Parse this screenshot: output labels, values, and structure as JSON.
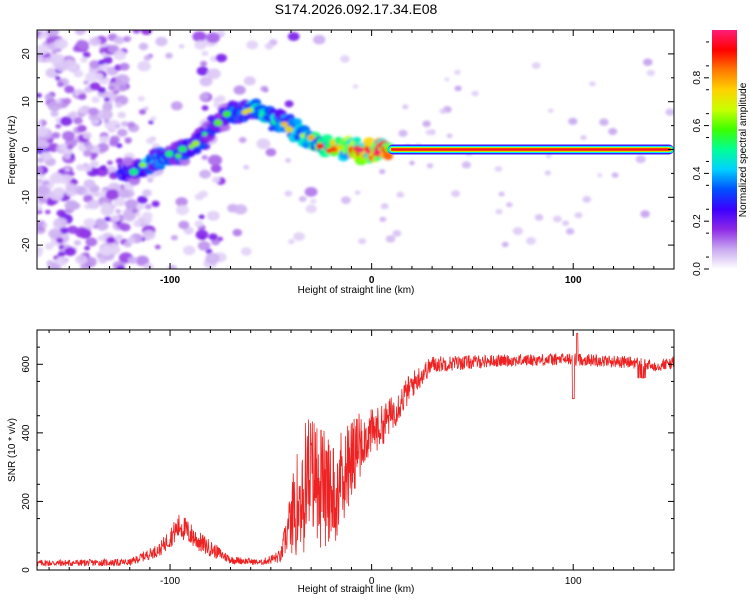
{
  "chart_data": [
    {
      "type": "heatmap",
      "title": "S174.2026.092.17.34.E08",
      "xlabel": "Height of straight line (km)",
      "ylabel": "Frequency (Hz)",
      "xlim": [
        -166,
        150
      ],
      "ylim": [
        -25,
        25
      ],
      "xticks": [
        -100,
        0,
        100
      ],
      "xtick_labels": [
        "-100",
        "0",
        "100"
      ],
      "yticks": [
        -20,
        -10,
        0,
        10,
        20
      ],
      "ytick_labels": [
        "-20",
        "-10",
        "0",
        "10",
        "20"
      ],
      "colorbar": {
        "label": "Normalized spectral amplitude",
        "range": [
          0,
          1
        ],
        "ticks": [
          0.0,
          0.2,
          0.4,
          0.6,
          0.8
        ],
        "tick_labels": [
          "0.0",
          "0.2",
          "0.4",
          "0.6",
          "0.8"
        ],
        "colors": [
          "#ffffff",
          "#c8a8f0",
          "#8c28e6",
          "#3c00ff",
          "#0050ff",
          "#00d2ff",
          "#00ff96",
          "#3cff00",
          "#c8ff00",
          "#ffd200",
          "#ff7800",
          "#ff0000",
          "#ff1e78"
        ]
      },
      "ridge": [
        {
          "x": -118,
          "f": -4.5,
          "a": 0.3
        },
        {
          "x": -110,
          "f": -3.0,
          "a": 0.42
        },
        {
          "x": -104,
          "f": -1.5,
          "a": 0.38
        },
        {
          "x": -96,
          "f": -1.0,
          "a": 0.36
        },
        {
          "x": -88,
          "f": 1.0,
          "a": 0.34
        },
        {
          "x": -80,
          "f": 4.0,
          "a": 0.3
        },
        {
          "x": -70,
          "f": 7.5,
          "a": 0.32
        },
        {
          "x": -60,
          "f": 8.5,
          "a": 0.45
        },
        {
          "x": -50,
          "f": 7.0,
          "a": 0.5
        },
        {
          "x": -42,
          "f": 5.0,
          "a": 0.44
        },
        {
          "x": -34,
          "f": 3.0,
          "a": 0.5
        },
        {
          "x": -26,
          "f": 1.0,
          "a": 0.58
        },
        {
          "x": -18,
          "f": 0.3,
          "a": 0.7
        },
        {
          "x": -10,
          "f": 0.5,
          "a": 0.75
        },
        {
          "x": -3,
          "f": -1.0,
          "a": 0.85
        },
        {
          "x": 5,
          "f": 0.0,
          "a": 0.9
        }
      ],
      "tone": {
        "f": 0.0,
        "x_start": 8,
        "x_end": 150,
        "amplitude": 0.95
      }
    },
    {
      "type": "line",
      "xlabel": "Height of straight line (km)",
      "ylabel": "SNR (10 * v/v)",
      "xlim": [
        -166,
        150
      ],
      "ylim": [
        0,
        700
      ],
      "xticks": [
        -100,
        0,
        100
      ],
      "xtick_labels": [
        "-100",
        "0",
        "100"
      ],
      "yticks": [
        0,
        200,
        400,
        600
      ],
      "ytick_labels": [
        "0",
        "200",
        "400",
        "600"
      ],
      "color": "#ee2222",
      "envelope": {
        "x": [
          -166,
          -120,
          -105,
          -95,
          -85,
          -70,
          -55,
          -45,
          -38,
          -32,
          -26,
          -20,
          -12,
          -5,
          5,
          12,
          20,
          30,
          60,
          100,
          130,
          140,
          150
        ],
        "mean": [
          20,
          22,
          60,
          130,
          80,
          30,
          22,
          40,
          200,
          290,
          280,
          230,
          330,
          380,
          420,
          470,
          540,
          600,
          610,
          615,
          605,
          595,
          605
        ],
        "spread": [
          10,
          10,
          20,
          40,
          30,
          12,
          8,
          20,
          120,
          170,
          160,
          140,
          110,
          80,
          60,
          50,
          40,
          25,
          18,
          18,
          18,
          18,
          18
        ]
      }
    }
  ]
}
